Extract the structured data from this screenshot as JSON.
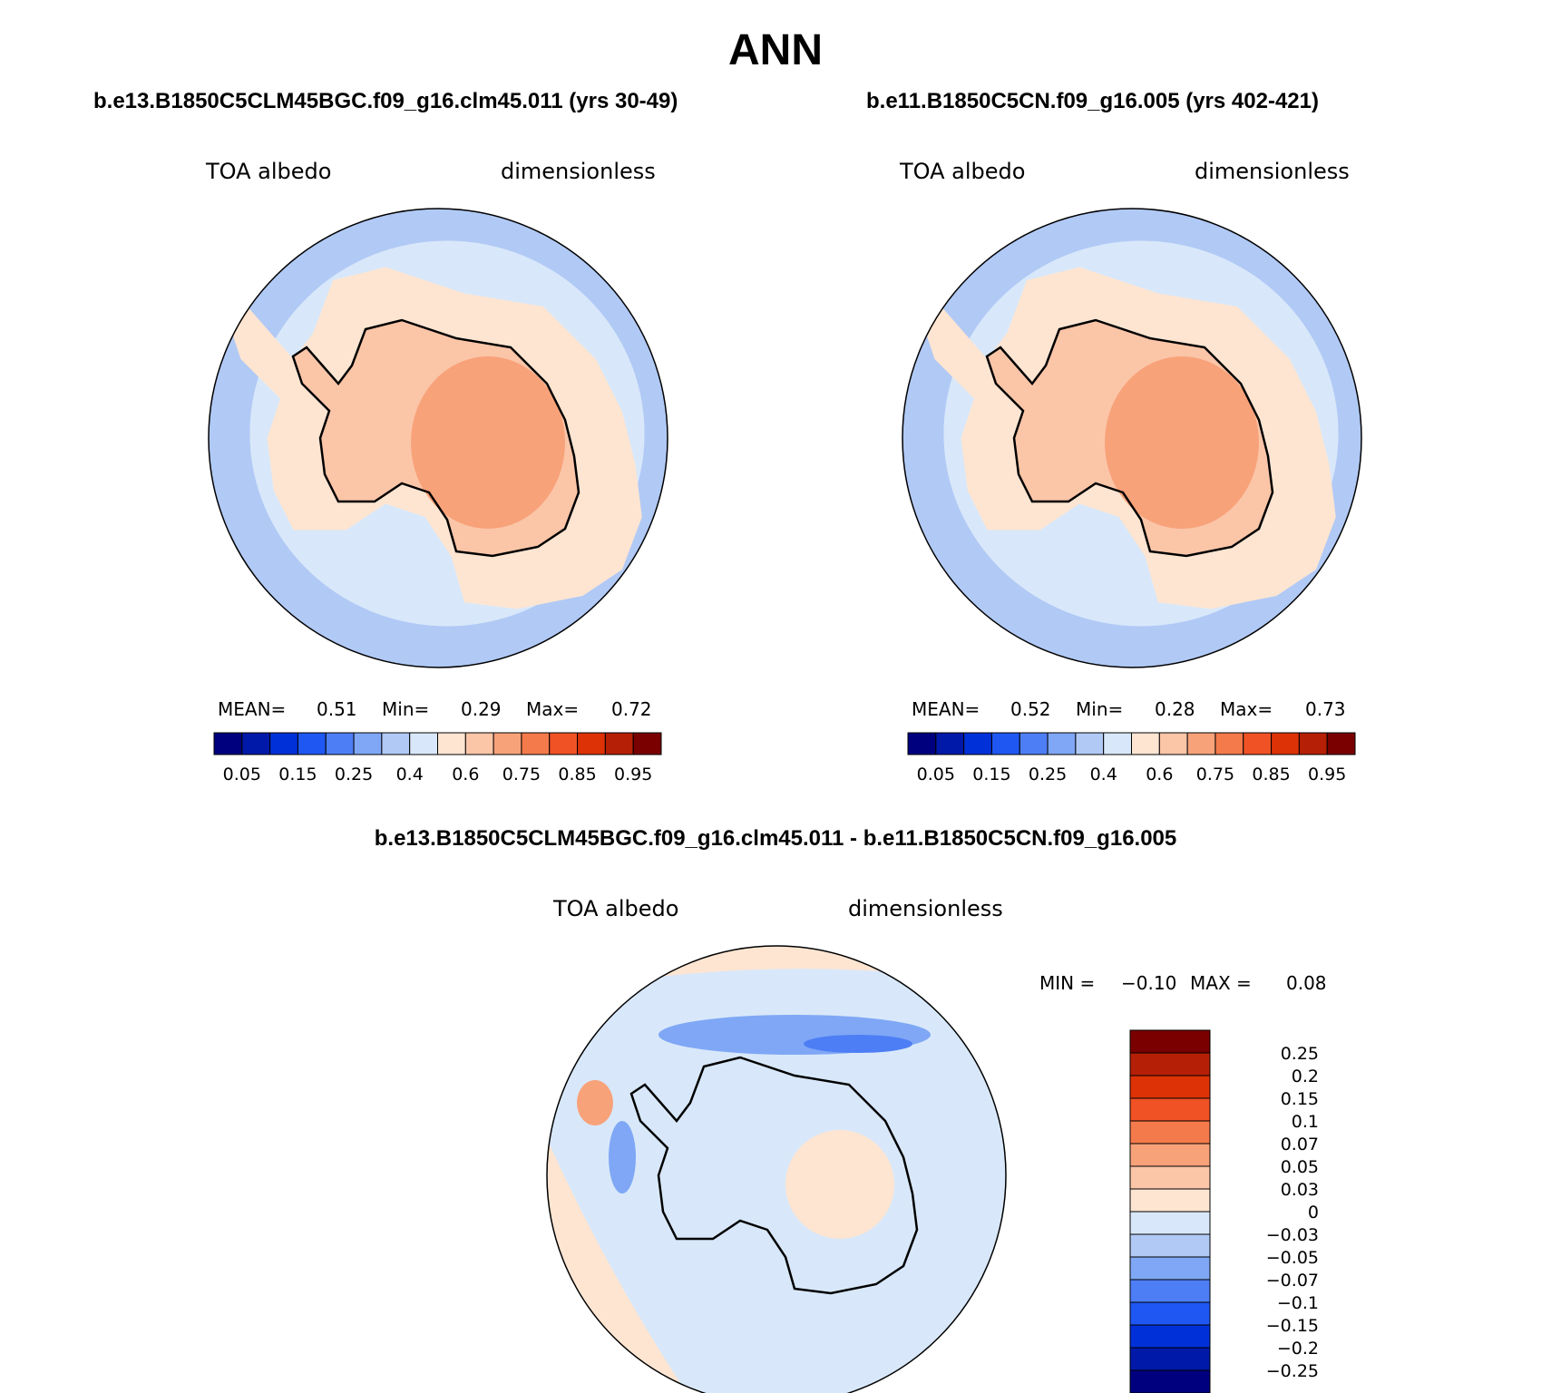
{
  "title": "ANN",
  "panels": [
    {
      "case": "b.e13.B1850C5CLM45BGC.f09_g16.clm45.011 (yrs 30-49)",
      "variable": "TOA albedo",
      "units": "dimensionless",
      "stats": {
        "mean_label": "MEAN=",
        "mean": "0.51",
        "min_label": "Min=",
        "min": "0.29",
        "max_label": "Max=",
        "max": "0.72"
      }
    },
    {
      "case": "b.e11.B1850C5CN.f09_g16.005 (yrs 402-421)",
      "variable": "TOA albedo",
      "units": "dimensionless",
      "stats": {
        "mean_label": "MEAN=",
        "mean": "0.52",
        "min_label": "Min=",
        "min": "0.28",
        "max_label": "Max=",
        "max": "0.73"
      }
    }
  ],
  "diff": {
    "case": "b.e13.B1850C5CLM45BGC.f09_g16.clm45.011 - b.e11.B1850C5CN.f09_g16.005",
    "variable": "TOA albedo",
    "units": "dimensionless",
    "stats": {
      "min_label": "MIN =",
      "min": "−0.10",
      "max_label": "MAX =",
      "max": "0.08"
    }
  },
  "colorbar_abs": {
    "colors": [
      "#00007f",
      "#0019a8",
      "#0030d8",
      "#1f57f2",
      "#4d7ef5",
      "#7fa7f5",
      "#b1c9f5",
      "#d8e8fa",
      "#fde5d2",
      "#fbc5a8",
      "#f8a27a",
      "#f47a4b",
      "#f05225",
      "#dd3206",
      "#b51f05",
      "#7a0000"
    ],
    "tick_labels": [
      "0.05",
      "0.15",
      "0.25",
      "0.4",
      "0.6",
      "0.75",
      "0.85",
      "0.95"
    ]
  },
  "colorbar_diff": {
    "colors": [
      "#00007f",
      "#0019a8",
      "#0030d8",
      "#1f57f2",
      "#4d7ef5",
      "#7fa7f5",
      "#b1c9f5",
      "#d8e8fa",
      "#fde5d2",
      "#fbc5a8",
      "#f8a27a",
      "#f47a4b",
      "#f05225",
      "#dd3206",
      "#b51f05",
      "#7a0000"
    ],
    "tick_labels": [
      "−0.25",
      "−0.2",
      "−0.15",
      "−0.1",
      "−0.07",
      "−0.05",
      "−0.03",
      "0",
      "0.03",
      "0.05",
      "0.07",
      "0.1",
      "0.15",
      "0.2",
      "0.25"
    ]
  },
  "map_colors": {
    "ocean_far": "#b1c9f5",
    "ocean_mid": "#d8e8fa",
    "sea_ice": "#fde5d2",
    "land": "#fbc5a8",
    "plateau": "#f8a27a",
    "diff_bg": "#d8e8fa",
    "diff_pos": "#fde5d2",
    "diff_neg": "#7fa7f5",
    "diff_neg_strong": "#4d7ef5",
    "coast": "#000000"
  }
}
